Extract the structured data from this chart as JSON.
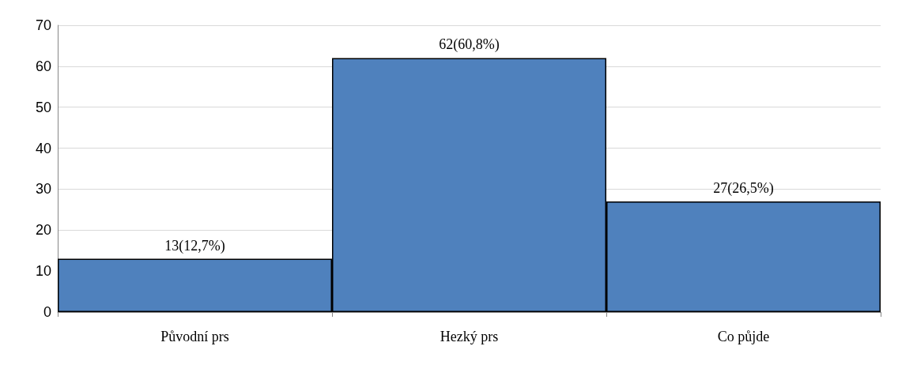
{
  "chart_data": {
    "type": "bar",
    "categories": [
      "Původní prs",
      "Hezký prs",
      "Co půjde"
    ],
    "values": [
      13,
      62,
      27
    ],
    "value_labels": [
      "13(12,7%)",
      "62(60,8%)",
      "27(26,5%)"
    ],
    "color": "#4f81bd",
    "ylim": [
      0,
      70
    ],
    "yticks": [
      0,
      10,
      20,
      30,
      40,
      50,
      60,
      70
    ],
    "grid": "y"
  }
}
